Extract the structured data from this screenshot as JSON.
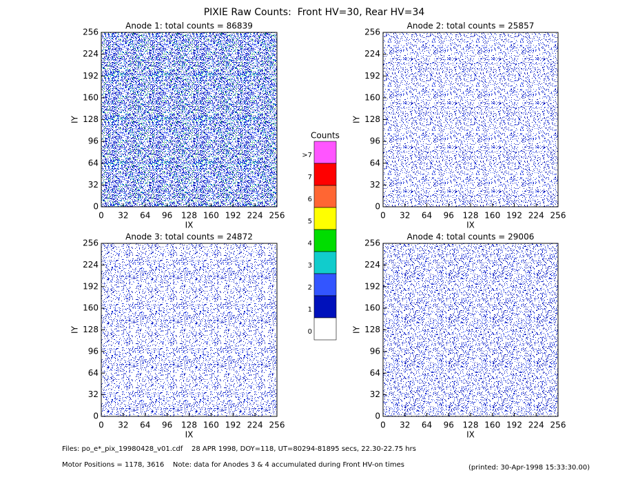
{
  "title": "PIXIE Raw Counts:  Front HV=30, Rear HV=34",
  "chart_data": [
    {
      "type": "heatmap",
      "title": "Anode 1: total counts = 86839",
      "xlabel": "IX",
      "ylabel": "IY",
      "xlim": [
        0,
        256
      ],
      "ylim": [
        0,
        256
      ],
      "xticks": [
        0,
        32,
        64,
        96,
        128,
        160,
        192,
        224,
        256
      ],
      "yticks": [
        0,
        32,
        64,
        96,
        128,
        160,
        192,
        224,
        256
      ]
    },
    {
      "type": "heatmap",
      "title": "Anode 2: total counts = 25857",
      "xlabel": "IX",
      "ylabel": "IY",
      "xlim": [
        0,
        256
      ],
      "ylim": [
        0,
        256
      ],
      "xticks": [
        0,
        32,
        64,
        96,
        128,
        160,
        192,
        224,
        256
      ],
      "yticks": [
        0,
        32,
        64,
        96,
        128,
        160,
        192,
        224,
        256
      ]
    },
    {
      "type": "heatmap",
      "title": "Anode 3: total counts = 24872",
      "xlabel": "IX",
      "ylabel": "IY",
      "xlim": [
        0,
        256
      ],
      "ylim": [
        0,
        256
      ],
      "xticks": [
        0,
        32,
        64,
        96,
        128,
        160,
        192,
        224,
        256
      ],
      "yticks": [
        0,
        32,
        64,
        96,
        128,
        160,
        192,
        224,
        256
      ]
    },
    {
      "type": "heatmap",
      "title": "Anode 4: total counts = 29006",
      "xlabel": "IX",
      "ylabel": "IY",
      "xlim": [
        0,
        256
      ],
      "ylim": [
        0,
        256
      ],
      "xticks": [
        0,
        32,
        64,
        96,
        128,
        160,
        192,
        224,
        256
      ],
      "yticks": [
        0,
        32,
        64,
        96,
        128,
        160,
        192,
        224,
        256
      ]
    },
    {
      "type": "colorbar",
      "title": "Counts",
      "categories": [
        ">7",
        "7",
        "6",
        "5",
        "4",
        "3",
        "2",
        "1",
        "0"
      ],
      "colors": [
        "#ff55ff",
        "#ff0000",
        "#ff6633",
        "#ffff00",
        "#00dd00",
        "#11cccc",
        "#3355ff",
        "#0011bb",
        "#ffffff"
      ]
    }
  ],
  "footer": {
    "files": "Files: po_e*_pix_19980428_v01.cdf    28 APR 1998, DOY=118, UT=80294-81895 secs, 22.30-22.75 hrs",
    "motor": "Motor Positions = 1178, 3616    Note: data for Anodes 3 & 4 accumulated during Front HV-on times",
    "printed": "(printed: 30-Apr-1998 15:33:30.00)"
  }
}
